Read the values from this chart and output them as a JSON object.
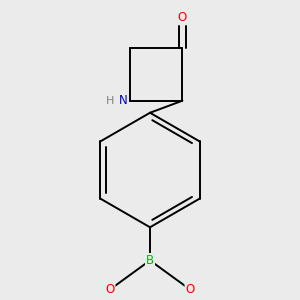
{
  "bg_color": "#ebebeb",
  "atom_colors": {
    "O": "#ff0000",
    "N": "#0000cd",
    "B": "#00bb00",
    "C": "#000000",
    "H": "#808080"
  },
  "bond_color": "#000000",
  "bond_width": 1.4,
  "font_size_atoms": 8.5,
  "font_size_H": 8.0
}
